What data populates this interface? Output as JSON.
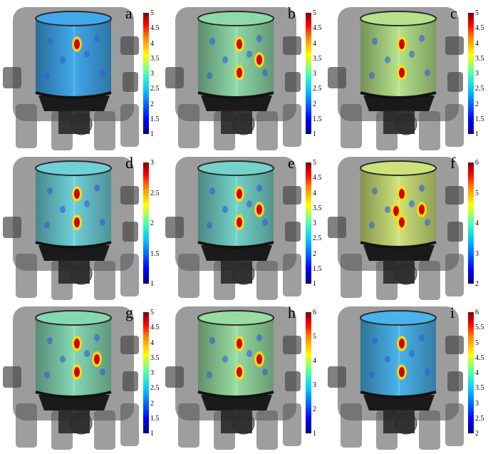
{
  "panels": [
    {
      "label": "a",
      "ticks": [
        "5",
        "4.5",
        "4",
        "3.5",
        "3",
        "2.5",
        "2",
        "1.5",
        "1"
      ],
      "tone": "#41a8ec",
      "hot": 1
    },
    {
      "label": "b",
      "ticks": [
        "5",
        "4.5",
        "4",
        "3.5",
        "3",
        "2.5",
        "2",
        "1.5",
        "1"
      ],
      "tone": "#8fd9a8",
      "hot": 3
    },
    {
      "label": "c",
      "ticks": [
        "5",
        "4.5",
        "4",
        "3.5",
        "3",
        "2.5",
        "2",
        "1.5",
        "1"
      ],
      "tone": "#b5e28b",
      "hot": 2
    },
    {
      "label": "d",
      "ticks": [
        "3",
        "2.5",
        "2",
        "1.5",
        "1"
      ],
      "tone": "#6fd0d8",
      "hot": 2
    },
    {
      "label": "e",
      "ticks": [
        "5",
        "4.5",
        "4",
        "3.5",
        "3",
        "2.5",
        "2",
        "1.5",
        "1"
      ],
      "tone": "#74d2c9",
      "hot": 3
    },
    {
      "label": "f",
      "ticks": [
        "6",
        "5",
        "4",
        "3",
        "2"
      ],
      "tone": "#cde37a",
      "hot": 4
    },
    {
      "label": "g",
      "ticks": [
        "5",
        "4.5",
        "4",
        "3.5",
        "3",
        "2.5",
        "2",
        "1.5",
        "1"
      ],
      "tone": "#86d8b5",
      "hot": 3
    },
    {
      "label": "h",
      "ticks": [
        "6",
        "5",
        "4",
        "3",
        "2",
        "1"
      ],
      "tone": "#98dca2",
      "hot": 3
    },
    {
      "label": "i",
      "ticks": [
        "6",
        "5.5",
        "5",
        "4.5",
        "4",
        "3.5",
        "3",
        "2.5",
        "2"
      ],
      "tone": "#4ab3ea",
      "hot": 2
    }
  ]
}
